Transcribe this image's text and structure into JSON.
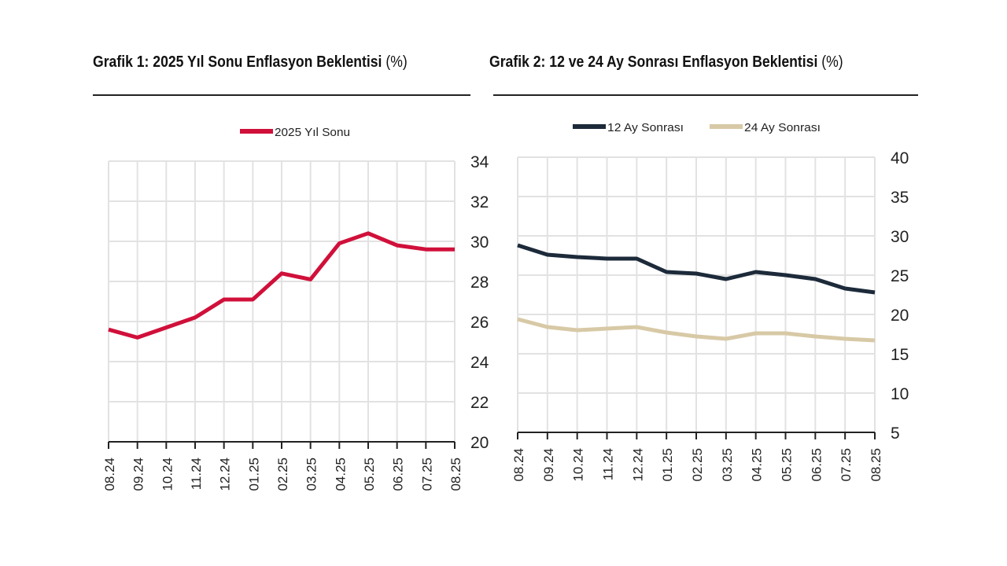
{
  "chart_data": [
    {
      "type": "line",
      "title": "Grafik 1: 2025 Yıl Sonu Enflasyon Beklentisi",
      "unit": "(%)",
      "categories": [
        "08.24",
        "09.24",
        "10.24",
        "11.24",
        "12.24",
        "01.25",
        "02.25",
        "03.25",
        "04.25",
        "05.25",
        "06.25",
        "07.25",
        "08.25"
      ],
      "series": [
        {
          "name": "2025 Yıl Sonu",
          "color": "#d0103a",
          "values": [
            25.6,
            25.2,
            25.7,
            26.2,
            27.1,
            27.1,
            28.4,
            28.1,
            29.9,
            30.4,
            29.8,
            29.6,
            29.6
          ]
        }
      ],
      "ylim": [
        20,
        34
      ],
      "yticks": [
        20,
        22,
        24,
        26,
        28,
        30,
        32,
        34
      ],
      "yaxis_side": "right",
      "grid": true,
      "legend": "top-center"
    },
    {
      "type": "line",
      "title": "Grafik 2: 12 ve 24 Ay Sonrası Enflasyon Beklentisi",
      "unit": "(%)",
      "categories": [
        "08.24",
        "09.24",
        "10.24",
        "11.24",
        "12.24",
        "01.25",
        "02.25",
        "03.25",
        "04.25",
        "05.25",
        "06.25",
        "07.25",
        "08.25"
      ],
      "series": [
        {
          "name": "12 Ay Sonrası",
          "color": "#1c2a3a",
          "values": [
            28.8,
            27.6,
            27.3,
            27.1,
            27.1,
            25.4,
            25.2,
            24.5,
            25.4,
            25.0,
            24.5,
            23.3,
            22.8
          ]
        },
        {
          "name": "24 Ay Sonrası",
          "color": "#d8c9a6",
          "values": [
            19.4,
            18.4,
            18.0,
            18.2,
            18.4,
            17.7,
            17.2,
            16.9,
            17.6,
            17.6,
            17.2,
            16.9,
            16.7
          ]
        }
      ],
      "ylim": [
        5,
        40
      ],
      "yticks": [
        5,
        10,
        15,
        20,
        25,
        30,
        35,
        40
      ],
      "yaxis_side": "right",
      "grid": true,
      "legend": "top-center"
    }
  ]
}
